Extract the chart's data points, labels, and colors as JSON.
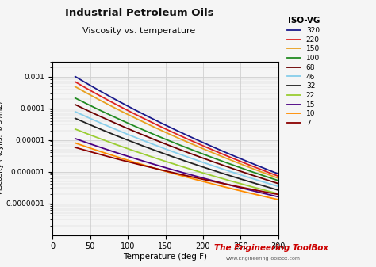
{
  "title": "Industrial Petroleum Oils",
  "subtitle": "Viscosity vs. temperature",
  "xlabel": "Temperature (deg F)",
  "ylabel": "Viscosity (Reyns, lb s /in2)",
  "watermark_line1": "The Engineering ToolBox",
  "watermark_line2": "www.EngineeringToolBox.com",
  "xlim": [
    0,
    300
  ],
  "ylim": [
    1e-08,
    0.003
  ],
  "ytick_vals": [
    1e-07,
    1e-06,
    1e-05,
    0.0001,
    0.001
  ],
  "ytick_labels": [
    "0.0000001",
    "0.000001",
    "0.00001",
    "0.0001",
    "0.001"
  ],
  "xticks": [
    0,
    50,
    100,
    150,
    200,
    250,
    300
  ],
  "bg_color": "#f5f5f5",
  "grid_color": "#d0d0d0",
  "two_point_data": [
    {
      "label": "320",
      "color": "#1a1a8c",
      "T1": 30,
      "v1": 0.001,
      "T2": 300,
      "v2": 8.5e-07
    },
    {
      "label": "220",
      "color": "#dd2222",
      "T1": 30,
      "v1": 0.00068,
      "T2": 300,
      "v2": 7.2e-07
    },
    {
      "label": "150",
      "color": "#e8a020",
      "T1": 30,
      "v1": 0.00048,
      "T2": 300,
      "v2": 6.2e-07
    },
    {
      "label": "100",
      "color": "#228B22",
      "T1": 30,
      "v1": 0.00021,
      "T2": 300,
      "v2": 5.2e-07
    },
    {
      "label": "68",
      "color": "#6B0000",
      "T1": 30,
      "v1": 0.00013,
      "T2": 300,
      "v2": 4.2e-07
    },
    {
      "label": "46",
      "color": "#87CEEB",
      "T1": 30,
      "v1": 7.8e-05,
      "T2": 300,
      "v2": 3.4e-07
    },
    {
      "label": "32",
      "color": "#222222",
      "T1": 30,
      "v1": 4.8e-05,
      "T2": 300,
      "v2": 2.6e-07
    },
    {
      "label": "22",
      "color": "#9acd32",
      "T1": 30,
      "v1": 2.2e-05,
      "T2": 300,
      "v2": 2e-07
    },
    {
      "label": "15",
      "color": "#4B0082",
      "T1": 30,
      "v1": 1.1e-05,
      "T2": 300,
      "v2": 1.6e-07
    },
    {
      "label": "10",
      "color": "#FF8C00",
      "T1": 30,
      "v1": 8e-06,
      "T2": 300,
      "v2": 1.3e-07
    },
    {
      "label": "7",
      "color": "#8B0000",
      "T1": 30,
      "v1": 5.8e-06,
      "T2": 300,
      "v2": 1.9e-07
    }
  ]
}
